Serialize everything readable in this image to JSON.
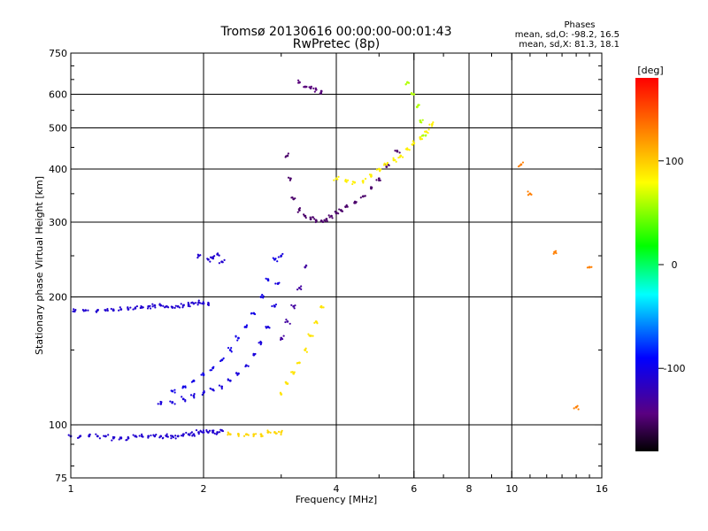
{
  "header": {
    "title_line1": "Tromsø 20130616 00:00:00-00:01:43",
    "title_line2": "RwPretec (8p)",
    "stats_title": "Phases",
    "stats_o": "mean, sd,O: -98.2, 16.5",
    "stats_x": "mean, sd,X: 81.3, 18.1"
  },
  "chart_data": {
    "type": "scatter",
    "title": "Tromsø 20130616 00:00:00-00:01:43",
    "subtitle": "RwPretec (8p)",
    "xlabel": "Frequency [MHz]",
    "ylabel": "Stationary phase Virtual Height [km]",
    "x_scale": "log",
    "y_scale": "log",
    "xlim": [
      1,
      16
    ],
    "ylim": [
      75,
      750
    ],
    "x_ticks": [
      1,
      2,
      4,
      6,
      8,
      10,
      16
    ],
    "x_tick_labels": [
      "1",
      "2",
      "4",
      "6",
      "8",
      "10",
      "16"
    ],
    "x_grid": [
      2,
      4,
      6,
      8,
      10
    ],
    "y_ticks": [
      75,
      100,
      200,
      300,
      400,
      500,
      600,
      750
    ],
    "y_tick_labels": [
      "75",
      "100",
      "200",
      "300",
      "400",
      "500",
      "600",
      "750"
    ],
    "y_grid": [
      100,
      200,
      300,
      400,
      500,
      600
    ],
    "grid": true,
    "colorbar": {
      "label": "[deg]",
      "range": [
        -180,
        180
      ],
      "ticks": [
        100,
        0,
        -100
      ],
      "tick_labels": [
        "100",
        "0",
        "-100"
      ],
      "colormap": "rainbow (black-purple-blue-cyan-green-yellow-red)"
    },
    "series": [
      {
        "x": [
          1.0,
          1.05,
          1.1,
          1.15,
          1.2,
          1.25,
          1.3,
          1.35,
          1.4,
          1.45,
          1.5,
          1.55,
          1.6,
          1.65,
          1.7,
          1.75,
          1.8,
          1.85,
          1.9,
          1.95,
          2.0,
          2.05,
          2.1,
          2.15,
          2.2
        ],
        "y": [
          94,
          94,
          94,
          94,
          94,
          93,
          93,
          93,
          94,
          94,
          94,
          94,
          94,
          94,
          94,
          94,
          95,
          95,
          95,
          96,
          96,
          96,
          96,
          96,
          97
        ],
        "phase": -110
      },
      {
        "x": [
          2.3,
          2.4,
          2.5,
          2.6,
          2.7,
          2.8,
          2.9,
          3.0
        ],
        "y": [
          95,
          95,
          95,
          95,
          95,
          96,
          96,
          96
        ],
        "phase": 95
      },
      {
        "x": [
          1.02,
          1.08,
          1.15,
          1.2,
          1.25,
          1.3,
          1.35,
          1.4,
          1.45,
          1.5,
          1.55,
          1.6,
          1.65,
          1.7,
          1.75,
          1.8,
          1.85,
          1.9,
          1.95,
          2.0,
          2.05
        ],
        "y": [
          185,
          186,
          186,
          186,
          186,
          187,
          187,
          188,
          189,
          190,
          191,
          191,
          190,
          189,
          190,
          191,
          192,
          193,
          194,
          193,
          192
        ],
        "phase": -110
      },
      {
        "x": [
          1.6,
          1.7,
          1.8,
          1.9,
          2.0,
          2.1,
          2.2,
          2.3,
          2.4,
          2.5,
          2.6,
          2.7,
          2.8,
          2.9,
          2.95,
          3.0
        ],
        "y": [
          112,
          113,
          115,
          117,
          119,
          121,
          123,
          127,
          132,
          138,
          146,
          156,
          170,
          190,
          215,
          250
        ],
        "phase": -105
      },
      {
        "x": [
          1.7,
          1.8,
          1.9,
          2.0,
          2.1,
          2.2,
          2.3,
          2.4,
          2.5,
          2.6,
          2.7,
          2.8,
          2.9
        ],
        "y": [
          120,
          123,
          127,
          131,
          136,
          142,
          150,
          160,
          170,
          183,
          200,
          220,
          245
        ],
        "phase": -100
      },
      {
        "x": [
          1.95,
          2.05,
          2.1,
          2.15,
          2.2
        ],
        "y": [
          250,
          245,
          248,
          252,
          242
        ],
        "phase": -110
      },
      {
        "x": [
          3.0,
          3.1,
          3.2,
          3.3,
          3.4,
          3.5,
          3.6,
          3.7
        ],
        "y": [
          118,
          125,
          132,
          140,
          150,
          162,
          175,
          190
        ],
        "phase": 90
      },
      {
        "x": [
          3.0,
          3.1,
          3.2,
          3.3,
          3.4
        ],
        "y": [
          160,
          175,
          190,
          210,
          235
        ],
        "phase": -130
      },
      {
        "x": [
          3.1,
          3.15,
          3.2,
          3.3,
          3.4,
          3.5,
          3.6,
          3.7,
          3.8,
          3.9,
          4.0,
          4.1,
          4.2,
          4.4,
          4.6,
          4.8,
          5.0,
          5.2,
          5.5
        ],
        "y": [
          430,
          380,
          340,
          320,
          310,
          305,
          303,
          302,
          305,
          310,
          315,
          320,
          326,
          333,
          345,
          360,
          380,
          405,
          440
        ],
        "phase": -150
      },
      {
        "x": [
          3.3,
          3.4,
          3.5,
          3.6,
          3.7
        ],
        "y": [
          640,
          625,
          620,
          615,
          610
        ],
        "phase": -145
      },
      {
        "x": [
          4.0,
          4.2,
          4.4,
          4.6,
          4.8,
          5.0,
          5.2,
          5.4,
          5.6,
          5.8,
          6.0,
          6.2,
          6.4,
          6.6
        ],
        "y": [
          380,
          375,
          372,
          375,
          385,
          400,
          410,
          420,
          430,
          445,
          460,
          475,
          490,
          510
        ],
        "phase": 85
      },
      {
        "x": [
          5.8,
          6.0,
          6.1,
          6.2,
          6.3
        ],
        "y": [
          640,
          600,
          560,
          520,
          480
        ],
        "phase": 60
      },
      {
        "x": [
          10.5,
          11.0,
          12.5,
          14.0,
          15.0
        ],
        "y": [
          410,
          350,
          255,
          110,
          235
        ],
        "phase": 130
      }
    ]
  }
}
